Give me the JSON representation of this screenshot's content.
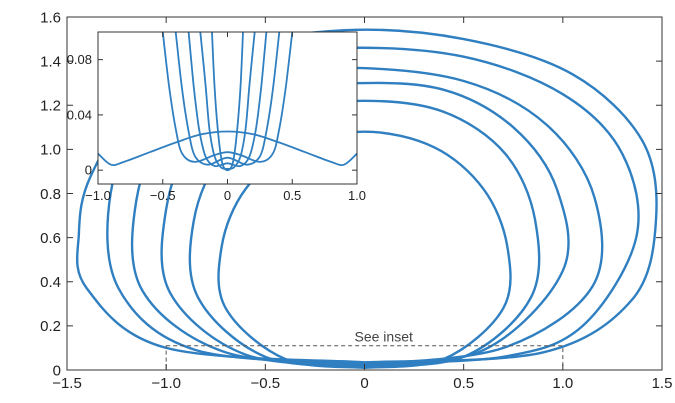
{
  "chart_data": [
    {
      "type": "line",
      "title": "",
      "xlabel": "",
      "ylabel": "",
      "xlim": [
        -1.5,
        1.5
      ],
      "ylim": [
        0,
        1.6
      ],
      "grid": false,
      "legend": "none",
      "color": "#2f7fc1",
      "x_ticks": [
        "−1.5",
        "−1.0",
        "−0.5",
        "0",
        "0.5",
        "1.0",
        "1.5"
      ],
      "y_ticks": [
        "0",
        "0.2",
        "0.4",
        "0.6",
        "0.8",
        "1.0",
        "1.2",
        "1.4",
        "1.6"
      ],
      "annotation": {
        "text": "See inset",
        "region": {
          "x": [
            -1.0,
            1.0
          ],
          "y": [
            0,
            0.11
          ]
        }
      },
      "series": [
        {
          "values": [
            [
              0,
              0.01
            ],
            [
              -0.4,
              0.05
            ],
            [
              -0.7,
              0.28
            ],
            [
              -0.72,
              0.56
            ],
            [
              -0.6,
              0.82
            ],
            [
              -0.35,
              1.01
            ],
            [
              0,
              1.08
            ],
            [
              0.35,
              1.01
            ],
            [
              0.6,
              0.82
            ],
            [
              0.72,
              0.56
            ],
            [
              0.7,
              0.28
            ],
            [
              0.4,
              0.05
            ],
            [
              0,
              0.01
            ]
          ]
        },
        {
          "values": [
            [
              0,
              0.015
            ],
            [
              -0.5,
              0.06
            ],
            [
              -0.84,
              0.33
            ],
            [
              -0.86,
              0.68
            ],
            [
              -0.71,
              0.98
            ],
            [
              -0.4,
              1.17
            ],
            [
              0,
              1.22
            ],
            [
              0.4,
              1.17
            ],
            [
              0.71,
              0.98
            ],
            [
              0.86,
              0.68
            ],
            [
              0.84,
              0.33
            ],
            [
              0.5,
              0.06
            ],
            [
              0,
              0.015
            ]
          ]
        },
        {
          "values": [
            [
              0,
              0.02
            ],
            [
              -0.6,
              0.07
            ],
            [
              -0.98,
              0.35
            ],
            [
              -1.0,
              0.73
            ],
            [
              -0.85,
              1.06
            ],
            [
              -0.52,
              1.25
            ],
            [
              -0.05,
              1.3
            ],
            [
              0.4,
              1.27
            ],
            [
              0.75,
              1.1
            ],
            [
              0.97,
              0.82
            ],
            [
              1.0,
              0.45
            ],
            [
              0.6,
              0.09
            ],
            [
              0,
              0.02
            ]
          ]
        },
        {
          "values": [
            [
              0,
              0.025
            ],
            [
              -0.7,
              0.08
            ],
            [
              -1.12,
              0.36
            ],
            [
              -1.15,
              0.77
            ],
            [
              -0.98,
              1.12
            ],
            [
              -0.6,
              1.33
            ],
            [
              -0.08,
              1.37
            ],
            [
              0.5,
              1.31
            ],
            [
              0.92,
              1.11
            ],
            [
              1.16,
              0.78
            ],
            [
              1.15,
              0.38
            ],
            [
              0.7,
              0.1
            ],
            [
              0,
              0.025
            ]
          ]
        },
        {
          "values": [
            [
              0,
              0.03
            ],
            [
              -0.85,
              0.09
            ],
            [
              -1.24,
              0.37
            ],
            [
              -1.28,
              0.8
            ],
            [
              -1.1,
              1.18
            ],
            [
              -0.7,
              1.4
            ],
            [
              -0.1,
              1.46
            ],
            [
              0.5,
              1.42
            ],
            [
              1.0,
              1.25
            ],
            [
              1.3,
              0.98
            ],
            [
              1.37,
              0.6
            ],
            [
              1.1,
              0.2
            ],
            [
              0.7,
              0.06
            ],
            [
              0,
              0.03
            ]
          ]
        },
        {
          "values": [
            [
              0,
              0.035
            ],
            [
              -1.0,
              0.1
            ],
            [
              -1.4,
              0.37
            ],
            [
              -1.44,
              0.62
            ],
            [
              -1.38,
              0.88
            ],
            [
              -1.13,
              1.22
            ],
            [
              -0.7,
              1.45
            ],
            [
              -0.1,
              1.54
            ],
            [
              0.5,
              1.5
            ],
            [
              1.05,
              1.34
            ],
            [
              1.4,
              1.04
            ],
            [
              1.47,
              0.68
            ],
            [
              1.35,
              0.32
            ],
            [
              0.9,
              0.08
            ],
            [
              0,
              0.035
            ]
          ]
        }
      ]
    },
    {
      "type": "line",
      "title": "",
      "xlabel": "",
      "ylabel": "",
      "xlim": [
        -1.0,
        1.0
      ],
      "ylim": [
        -0.01,
        0.1
      ],
      "grid": false,
      "legend": "none",
      "color": "#2f7fc1",
      "x_ticks": [
        "−1.0",
        "−0.5",
        "0",
        "0.5",
        "1.0"
      ],
      "y_ticks": [
        "0",
        "0.04",
        "0.08"
      ],
      "series": [
        {
          "values": [
            [
              -1.0,
              0.012
            ],
            [
              -0.9,
              0.004
            ],
            [
              -0.8,
              0.006
            ],
            [
              -0.6,
              0.013
            ],
            [
              -0.4,
              0.02
            ],
            [
              -0.2,
              0.026
            ],
            [
              0,
              0.028
            ],
            [
              0.2,
              0.026
            ],
            [
              0.4,
              0.02
            ],
            [
              0.6,
              0.013
            ],
            [
              0.8,
              0.006
            ],
            [
              0.9,
              0.004
            ],
            [
              1.0,
              0.012
            ]
          ]
        },
        {
          "values": [
            [
              -0.5,
              0.1
            ],
            [
              -0.45,
              0.06
            ],
            [
              -0.4,
              0.03
            ],
            [
              -0.35,
              0.012
            ],
            [
              -0.25,
              0.006
            ],
            [
              -0.1,
              0.011
            ],
            [
              0,
              0.013
            ],
            [
              0.1,
              0.011
            ],
            [
              0.25,
              0.006
            ],
            [
              0.35,
              0.012
            ],
            [
              0.4,
              0.03
            ],
            [
              0.45,
              0.06
            ],
            [
              0.5,
              0.1
            ]
          ]
        },
        {
          "values": [
            [
              -0.4,
              0.1
            ],
            [
              -0.35,
              0.058
            ],
            [
              -0.3,
              0.028
            ],
            [
              -0.25,
              0.01
            ],
            [
              -0.15,
              0.004
            ],
            [
              0,
              0.009
            ],
            [
              0.15,
              0.004
            ],
            [
              0.25,
              0.01
            ],
            [
              0.3,
              0.028
            ],
            [
              0.35,
              0.058
            ],
            [
              0.4,
              0.1
            ]
          ]
        },
        {
          "values": [
            [
              -0.3,
              0.1
            ],
            [
              -0.26,
              0.06
            ],
            [
              -0.22,
              0.03
            ],
            [
              -0.17,
              0.01
            ],
            [
              -0.1,
              0.003
            ],
            [
              0,
              0.005
            ],
            [
              0.1,
              0.003
            ],
            [
              0.17,
              0.01
            ],
            [
              0.22,
              0.03
            ],
            [
              0.26,
              0.06
            ],
            [
              0.3,
              0.1
            ]
          ]
        },
        {
          "values": [
            [
              -0.21,
              0.1
            ],
            [
              -0.17,
              0.062
            ],
            [
              -0.14,
              0.03
            ],
            [
              -0.1,
              0.01
            ],
            [
              -0.05,
              0.002
            ],
            [
              0,
              0.001
            ],
            [
              0.05,
              0.002
            ],
            [
              0.1,
              0.01
            ],
            [
              0.14,
              0.03
            ],
            [
              0.17,
              0.062
            ],
            [
              0.21,
              0.1
            ]
          ]
        },
        {
          "values": [
            [
              -0.12,
              0.1
            ],
            [
              -0.1,
              0.06
            ],
            [
              -0.07,
              0.025
            ],
            [
              -0.04,
              0.005
            ],
            [
              0,
              0.0
            ],
            [
              0.04,
              0.005
            ],
            [
              0.07,
              0.025
            ],
            [
              0.1,
              0.06
            ],
            [
              0.12,
              0.1
            ]
          ]
        }
      ]
    }
  ]
}
